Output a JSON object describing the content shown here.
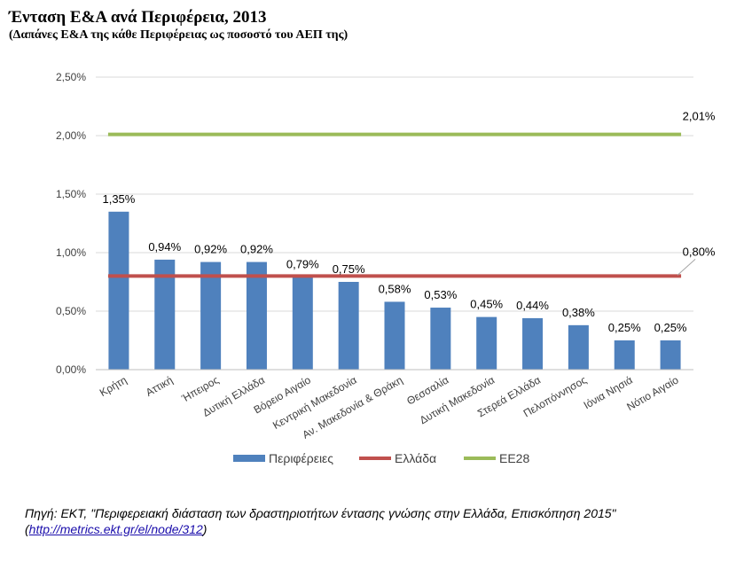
{
  "header": {
    "title": "Ένταση Ε&Α ανά Περιφέρεια, 2013",
    "subtitle": "(Δαπάνες Ε&Α της κάθε Περιφέρειας  ως ποσοστό του ΑΕΠ της)"
  },
  "chart_data": {
    "type": "bar",
    "categories": [
      "Κρήτη",
      "Αττική",
      "Ήπειρος",
      "Δυτική Ελλάδα",
      "Βόρειο Αιγαίο",
      "Κεντρική Μακεδονία",
      "Αν. Μακεδονία & Θράκη",
      "Θεσσαλία",
      "Δυτική Μακεδονία",
      "Στερεά Ελλάδα",
      "Πελοπόννησος",
      "Ιόνια Νησιά",
      "Νότιο Αιγαίο"
    ],
    "series": [
      {
        "name": "Περιφέρειες",
        "type": "bar",
        "color": "#4f81bd",
        "values": [
          1.35,
          0.94,
          0.92,
          0.92,
          0.79,
          0.75,
          0.58,
          0.53,
          0.45,
          0.44,
          0.38,
          0.25,
          0.25
        ],
        "labels": [
          "1,35%",
          "0,94%",
          "0,92%",
          "0,92%",
          "0,79%",
          "0,75%",
          "0,58%",
          "0,53%",
          "0,45%",
          "0,44%",
          "0,38%",
          "0,25%",
          "0,25%"
        ]
      },
      {
        "name": "Ελλάδα",
        "type": "line",
        "color": "#c0504d",
        "value": 0.8,
        "label": "0,80%"
      },
      {
        "name": "ΕΕ28",
        "type": "line",
        "color": "#9bbb59",
        "value": 2.01,
        "label": "2,01%"
      }
    ],
    "ylim": [
      0,
      2.5
    ],
    "yticks": [
      0,
      0.5,
      1.0,
      1.5,
      2.0,
      2.5
    ],
    "ytick_labels": [
      "0,00%",
      "0,50%",
      "1,00%",
      "1,50%",
      "2,00%",
      "2,50%"
    ],
    "grid": true,
    "legend": "bottom"
  },
  "source": {
    "text": "Πηγή: ΕΚΤ, \"Περιφερειακή διάσταση των δραστηριοτήτων έντασης γνώσης στην Ελλάδα, Επισκόπηση 2015\"",
    "link_open": "(",
    "link": "http://metrics.ekt.gr/el/node/312",
    "link_close": ")"
  }
}
